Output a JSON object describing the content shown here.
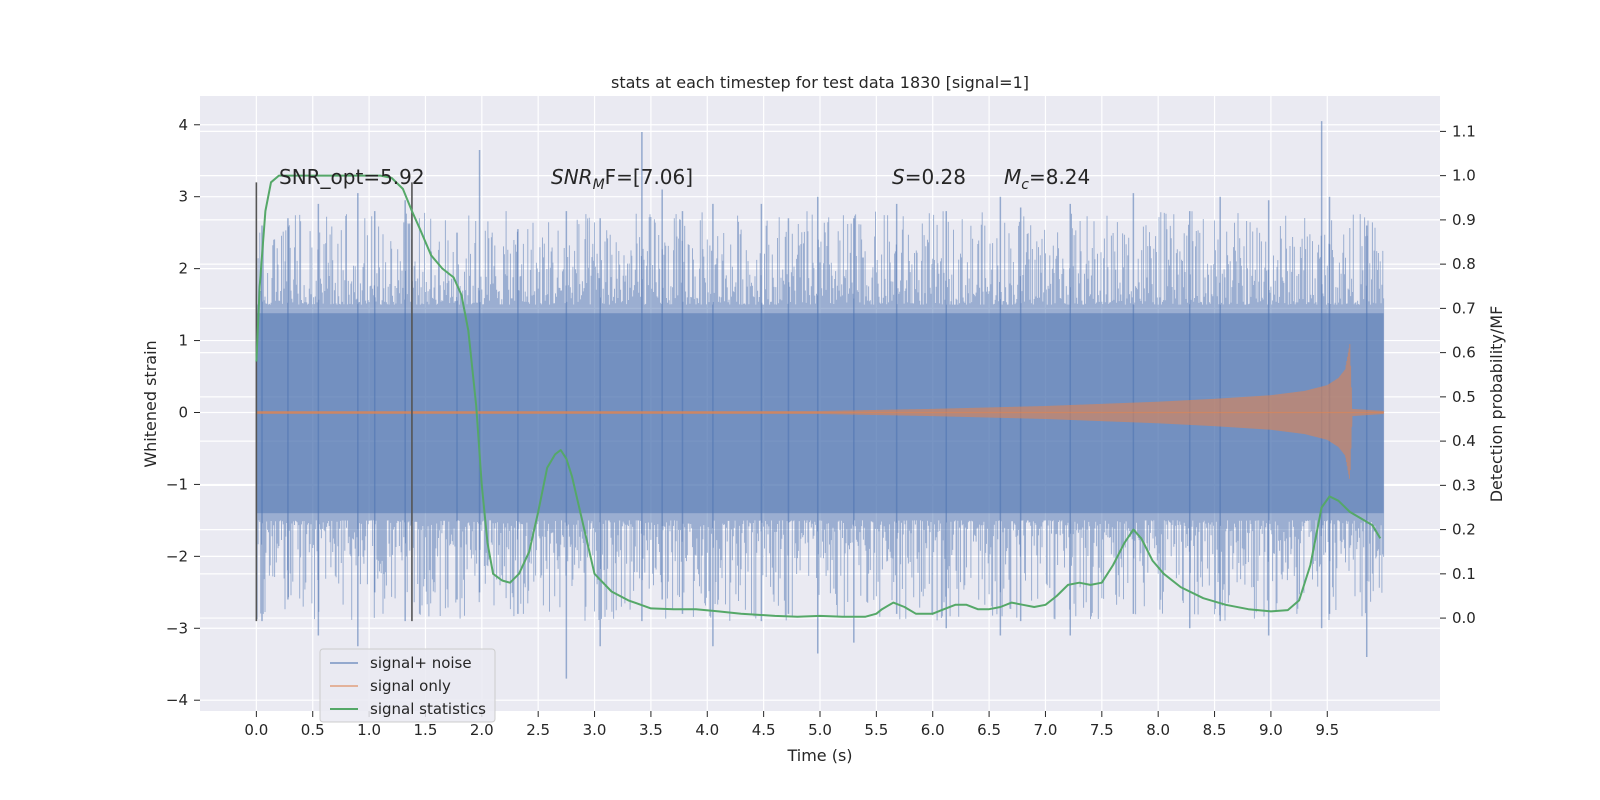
{
  "chart_data": {
    "type": "line",
    "title": "stats at each timestep for test data 1830 [signal=1]",
    "xlabel": "Time (s)",
    "ylabel_left": "Whitened strain",
    "ylabel_right": "Detection probability/MF",
    "xlim": [
      -0.5,
      10.5
    ],
    "ylim_left": [
      -4.15,
      4.4
    ],
    "ylim_right": [
      -0.21,
      1.18
    ],
    "x_ticks": [
      0.0,
      0.5,
      1.0,
      1.5,
      2.0,
      2.5,
      3.0,
      3.5,
      4.0,
      4.5,
      5.0,
      5.5,
      6.0,
      6.5,
      7.0,
      7.5,
      8.0,
      8.5,
      9.0,
      9.5
    ],
    "x_tick_labels": [
      "0.0",
      "0.5",
      "1.0",
      "1.5",
      "2.0",
      "2.5",
      "3.0",
      "3.5",
      "4.0",
      "4.5",
      "5.0",
      "5.5",
      "6.0",
      "6.5",
      "7.0",
      "7.5",
      "8.0",
      "8.5",
      "9.0",
      "9.5"
    ],
    "y_left_ticks": [
      4,
      3,
      2,
      1,
      0,
      -1,
      -2,
      -3,
      -4
    ],
    "y_left_tick_labels": [
      "4",
      "3",
      "2",
      "1",
      "0",
      "−1",
      "−2",
      "−3",
      "−4"
    ],
    "y_right_ticks": [
      1.1,
      1.0,
      0.9,
      0.8,
      0.7,
      0.6,
      0.5,
      0.4,
      0.3,
      0.2,
      0.1,
      0.0
    ],
    "y_right_tick_labels": [
      "1.1",
      "1.0",
      "0.9",
      "0.8",
      "0.7",
      "0.6",
      "0.5",
      "0.4",
      "0.3",
      "0.2",
      "0.1",
      "0.0"
    ],
    "grid": true,
    "legend_position": "lower-left",
    "annotations": {
      "snr_opt": "SNR_opt=5.92",
      "snr_mf_base": "SNR",
      "snr_mf_sub": "M",
      "snr_mf_rest": "F=[7.06]",
      "s_sym": "S",
      "s_val": "=0.28",
      "mc_sym": "M",
      "mc_sub": "c",
      "mc_val": "=8.24"
    },
    "window_lines": {
      "x": [
        0.0,
        1.38
      ],
      "y_range": [
        -2.9,
        3.2
      ]
    },
    "noise": {
      "name": "signal+ noise",
      "color": "#4c72b0",
      "x_range": [
        0.0,
        10.0
      ],
      "dense_band": [
        -1.4,
        1.38
      ],
      "spikes_x": [
        0.05,
        0.28,
        0.55,
        0.9,
        1.05,
        1.32,
        1.78,
        1.98,
        2.32,
        2.75,
        3.05,
        3.42,
        3.6,
        3.78,
        4.05,
        4.48,
        4.72,
        4.98,
        5.3,
        5.68,
        6.12,
        6.6,
        6.78,
        7.22,
        7.78,
        8.28,
        8.55,
        8.98,
        9.45,
        9.52,
        9.85
      ],
      "spikes_top": [
        2.6,
        2.7,
        2.9,
        3.05,
        2.8,
        2.95,
        2.5,
        3.65,
        2.55,
        2.8,
        2.7,
        3.9,
        3.1,
        2.8,
        2.9,
        2.9,
        2.7,
        3.0,
        2.7,
        2.9,
        2.8,
        3.0,
        2.85,
        2.9,
        3.05,
        2.8,
        3.0,
        2.95,
        4.05,
        3.0,
        2.6
      ],
      "spikes_bottom": [
        -2.9,
        -2.6,
        -3.1,
        -3.25,
        -2.5,
        -2.9,
        -2.6,
        -2.5,
        -2.8,
        -3.7,
        -3.25,
        -2.9,
        -2.6,
        -2.8,
        -3.25,
        -2.9,
        -2.8,
        -3.35,
        -3.2,
        -2.8,
        -3.0,
        -3.1,
        -2.9,
        -3.1,
        -2.8,
        -3.0,
        -2.9,
        -3.1,
        -3.0,
        -2.8,
        -3.4
      ]
    },
    "signal": {
      "name": "signal only",
      "color": "#dd8452",
      "x": [
        0.0,
        5.0,
        6.0,
        7.0,
        8.0,
        8.5,
        9.0,
        9.3,
        9.5,
        9.6,
        9.66,
        9.7,
        9.72,
        10.0
      ],
      "envelope": [
        0.02,
        0.02,
        0.05,
        0.09,
        0.15,
        0.19,
        0.24,
        0.3,
        0.38,
        0.48,
        0.6,
        0.95,
        0.05,
        0.02
      ]
    },
    "stats": {
      "name": "signal statistics",
      "color": "#55a868",
      "x": [
        0.0,
        0.03,
        0.08,
        0.13,
        0.2,
        0.3,
        0.5,
        0.7,
        0.9,
        1.1,
        1.2,
        1.3,
        1.38,
        1.45,
        1.55,
        1.65,
        1.75,
        1.82,
        1.88,
        1.95,
        2.0,
        2.05,
        2.1,
        2.18,
        2.25,
        2.33,
        2.42,
        2.5,
        2.58,
        2.65,
        2.7,
        2.75,
        2.8,
        2.9,
        3.0,
        3.15,
        3.3,
        3.5,
        3.7,
        3.9,
        4.1,
        4.3,
        4.6,
        4.8,
        5.0,
        5.2,
        5.4,
        5.5,
        5.55,
        5.65,
        5.75,
        5.85,
        6.0,
        6.1,
        6.2,
        6.3,
        6.4,
        6.5,
        6.6,
        6.7,
        6.8,
        6.9,
        7.0,
        7.1,
        7.2,
        7.3,
        7.4,
        7.5,
        7.6,
        7.7,
        7.78,
        7.85,
        7.95,
        8.05,
        8.2,
        8.4,
        8.6,
        8.8,
        9.0,
        9.15,
        9.25,
        9.35,
        9.45,
        9.52,
        9.6,
        9.7,
        9.8,
        9.9,
        9.97
      ],
      "y": [
        0.58,
        0.75,
        0.92,
        0.985,
        1.0,
        1.0,
        1.0,
        1.0,
        1.0,
        1.0,
        0.995,
        0.97,
        0.92,
        0.88,
        0.82,
        0.79,
        0.77,
        0.73,
        0.65,
        0.48,
        0.3,
        0.17,
        0.1,
        0.085,
        0.08,
        0.1,
        0.15,
        0.24,
        0.34,
        0.37,
        0.38,
        0.36,
        0.32,
        0.21,
        0.1,
        0.06,
        0.04,
        0.022,
        0.02,
        0.02,
        0.015,
        0.01,
        0.005,
        0.003,
        0.005,
        0.003,
        0.003,
        0.01,
        0.02,
        0.035,
        0.025,
        0.01,
        0.01,
        0.02,
        0.03,
        0.03,
        0.02,
        0.02,
        0.025,
        0.035,
        0.03,
        0.025,
        0.03,
        0.05,
        0.075,
        0.08,
        0.075,
        0.08,
        0.12,
        0.17,
        0.2,
        0.18,
        0.13,
        0.1,
        0.07,
        0.045,
        0.03,
        0.02,
        0.015,
        0.018,
        0.04,
        0.12,
        0.25,
        0.275,
        0.265,
        0.24,
        0.225,
        0.21,
        0.18
      ]
    }
  }
}
